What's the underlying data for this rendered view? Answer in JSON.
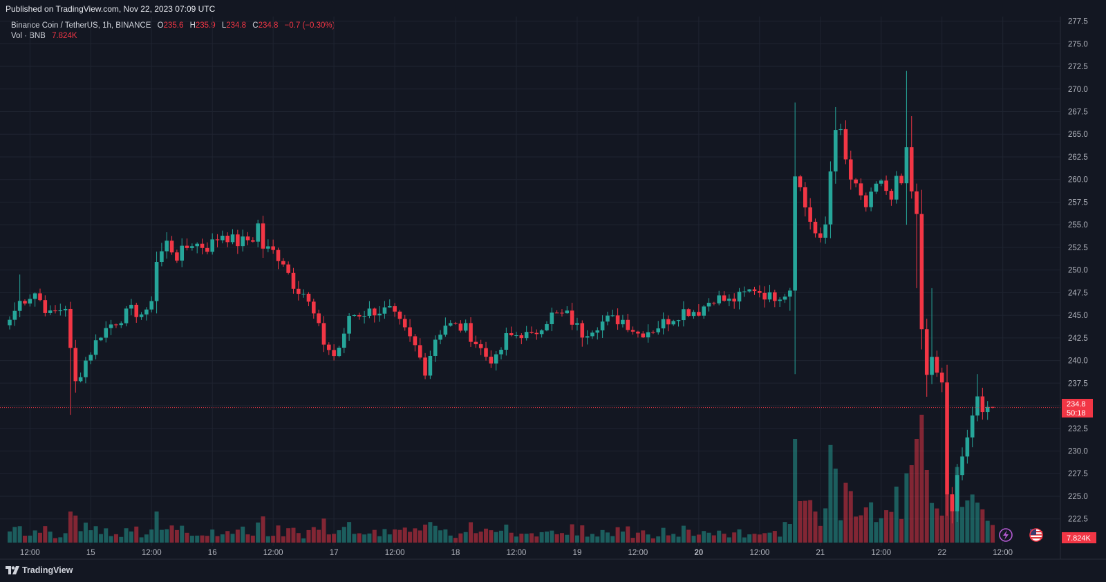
{
  "header": {
    "published": "Published on TradingView.com, Nov 22, 2023 07:09 UTC"
  },
  "legend": {
    "symbol": "Binance Coin / TetherUS, 1h, BINANCE",
    "o_label": "O",
    "o": "235.6",
    "h_label": "H",
    "h": "235.9",
    "l_label": "L",
    "l": "234.8",
    "c_label": "C",
    "c": "234.8",
    "change": "−0.7 (−0.30%)",
    "vol_label": "Vol · BNB",
    "vol": "7.824K"
  },
  "price_tag": {
    "price": "234.8",
    "countdown": "50:18"
  },
  "volume_tag": "7.824K",
  "branding": "TradingView",
  "colors": {
    "up": "#26a69a",
    "down": "#f23645",
    "bg": "#131722",
    "grid": "#1f2431",
    "text": "#d1d4dc"
  },
  "chart_data": {
    "type": "candlestick",
    "symbol": "BNBUSDT",
    "interval": "1h",
    "ylim": [
      219.5,
      278.0
    ],
    "y_ticks": [
      "222.5",
      "225.0",
      "227.5",
      "230.0",
      "232.5",
      "235.0",
      "237.5",
      "240.0",
      "242.5",
      "245.0",
      "247.5",
      "250.0",
      "252.5",
      "255.0",
      "257.5",
      "260.0",
      "262.5",
      "265.0",
      "267.5",
      "270.0",
      "272.5",
      "275.0",
      "277.5"
    ],
    "x_ticks": [
      {
        "label": "12:00",
        "bar": 4
      },
      {
        "label": "15",
        "bar": 16
      },
      {
        "label": "12:00",
        "bar": 28
      },
      {
        "label": "16",
        "bar": 40
      },
      {
        "label": "12:00",
        "bar": 52
      },
      {
        "label": "17",
        "bar": 64
      },
      {
        "label": "12:00",
        "bar": 76
      },
      {
        "label": "18",
        "bar": 88
      },
      {
        "label": "12:00",
        "bar": 100
      },
      {
        "label": "19",
        "bar": 112
      },
      {
        "label": "12:00",
        "bar": 124
      },
      {
        "label": "20",
        "bar": 136,
        "bold": true
      },
      {
        "label": "12:00",
        "bar": 148
      },
      {
        "label": "21",
        "bar": 160
      },
      {
        "label": "12:00",
        "bar": 172
      },
      {
        "label": "22",
        "bar": 184
      },
      {
        "label": "12:00",
        "bar": 196
      }
    ],
    "last_price": 234.8,
    "waypoints": [
      [
        0,
        244.5
      ],
      [
        2,
        246.5
      ],
      [
        5,
        247.5
      ],
      [
        8,
        245.0
      ],
      [
        11,
        246.0
      ],
      [
        12,
        241.0
      ],
      [
        13,
        237.5
      ],
      [
        15,
        240.0
      ],
      [
        18,
        243.0
      ],
      [
        20,
        244.0
      ],
      [
        24,
        245.5
      ],
      [
        27,
        245.0
      ],
      [
        28,
        247.0
      ],
      [
        29,
        251.0
      ],
      [
        31,
        253.0
      ],
      [
        33,
        251.5
      ],
      [
        36,
        253.0
      ],
      [
        39,
        252.5
      ],
      [
        42,
        254.0
      ],
      [
        45,
        253.0
      ],
      [
        48,
        253.5
      ],
      [
        49,
        255.0
      ],
      [
        50,
        252.5
      ],
      [
        52,
        252.0
      ],
      [
        54,
        251.0
      ],
      [
        56,
        248.5
      ],
      [
        58,
        247.5
      ],
      [
        60,
        245.0
      ],
      [
        62,
        242.0
      ],
      [
        64,
        240.5
      ],
      [
        66,
        242.5
      ],
      [
        67,
        245.0
      ],
      [
        72,
        245.5
      ],
      [
        75,
        245.5
      ],
      [
        77,
        244.0
      ],
      [
        80,
        241.5
      ],
      [
        82,
        239.0
      ],
      [
        84,
        242.5
      ],
      [
        86,
        244.0
      ],
      [
        90,
        243.5
      ],
      [
        92,
        242.0
      ],
      [
        94,
        240.5
      ],
      [
        96,
        240.0
      ],
      [
        98,
        242.5
      ],
      [
        101,
        243.0
      ],
      [
        103,
        242.5
      ],
      [
        105,
        244.0
      ],
      [
        107,
        245.0
      ],
      [
        110,
        245.0
      ],
      [
        113,
        243.0
      ],
      [
        116,
        244.0
      ],
      [
        118,
        244.5
      ],
      [
        121,
        244.5
      ],
      [
        124,
        243.0
      ],
      [
        127,
        243.5
      ],
      [
        130,
        244.5
      ],
      [
        133,
        245.5
      ],
      [
        136,
        245.5
      ],
      [
        139,
        247.0
      ],
      [
        142,
        246.5
      ],
      [
        144,
        247.0
      ],
      [
        147,
        248.0
      ],
      [
        150,
        247.0
      ],
      [
        153,
        247.5
      ],
      [
        154,
        248.0
      ],
      [
        155,
        261.0
      ],
      [
        157,
        257.0
      ],
      [
        159,
        254.0
      ],
      [
        160,
        253.0
      ],
      [
        161,
        255.0
      ],
      [
        162,
        261.0
      ],
      [
        163,
        266.0
      ],
      [
        164,
        265.0
      ],
      [
        165,
        262.0
      ],
      [
        166,
        260.0
      ],
      [
        167,
        259.0
      ],
      [
        169,
        257.0
      ],
      [
        172,
        260.0
      ],
      [
        174,
        257.5
      ],
      [
        175,
        260.0
      ],
      [
        176,
        259.0
      ],
      [
        177,
        263.5
      ],
      [
        178,
        258.0
      ],
      [
        179,
        256.0
      ],
      [
        180,
        243.0
      ],
      [
        181,
        238.5
      ],
      [
        182,
        241.0
      ],
      [
        183,
        238.0
      ],
      [
        184,
        237.5
      ],
      [
        185,
        225.0
      ],
      [
        186,
        223.5
      ],
      [
        187,
        227.0
      ],
      [
        188,
        229.0
      ],
      [
        189,
        231.5
      ],
      [
        190,
        234.0
      ],
      [
        191,
        235.5
      ],
      [
        192,
        234.0
      ],
      [
        193,
        235.5
      ],
      [
        194,
        234.8
      ]
    ]
  }
}
